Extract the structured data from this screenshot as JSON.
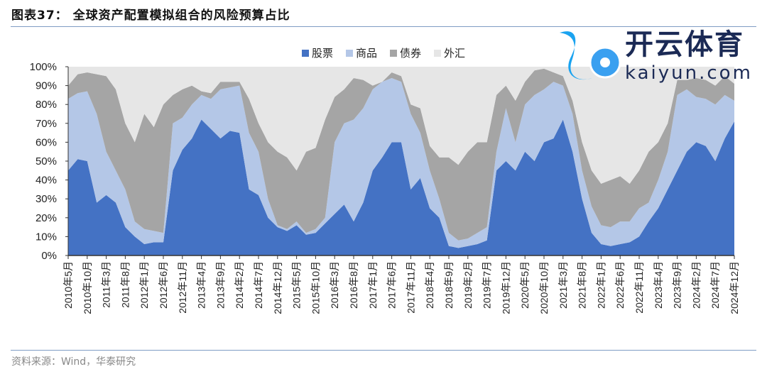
{
  "title": "图表37：  全球资产配置模拟组合的风险预算占比",
  "source": "资料来源：Wind，华泰研究",
  "watermark": {
    "cn": "开云体育",
    "en": "kaiyun.com"
  },
  "colors": {
    "equities": "#4472C4",
    "commodities": "#B4C7E7",
    "bonds": "#A5A5A5",
    "fx": "#E6E6E6"
  },
  "chart_data": {
    "type": "area",
    "stacked": true,
    "title": "",
    "xlabel": "",
    "ylabel": "",
    "ylim": [
      0,
      100
    ],
    "y_ticks": [
      "0%",
      "10%",
      "20%",
      "30%",
      "40%",
      "50%",
      "60%",
      "70%",
      "80%",
      "90%",
      "100%"
    ],
    "legend_position": "top-center",
    "x_start": "2010-05",
    "x_end": "2024-12",
    "x_step_months": 2.5,
    "x_tick_labels": [
      "2010年5月",
      "2010年10月",
      "2011年3月",
      "2011年8月",
      "2012年1月",
      "2012年6月",
      "2012年11月",
      "2013年4月",
      "2013年9月",
      "2014年2月",
      "2014年7月",
      "2014年12月",
      "2015年5月",
      "2015年10月",
      "2016年3月",
      "2016年8月",
      "2017年1月",
      "2017年6月",
      "2017年11月",
      "2018年4月",
      "2018年9月",
      "2019年2月",
      "2019年7月",
      "2019年12月",
      "2020年5月",
      "2020年10月",
      "2021年3月",
      "2021年8月",
      "2022年1月",
      "2022年6月",
      "2022年11月",
      "2023年4月",
      "2023年9月",
      "2024年2月",
      "2024年7月",
      "2024年12月"
    ],
    "series": [
      {
        "key": "equities",
        "name": "股票",
        "values": [
          45,
          51,
          50,
          28,
          32,
          28,
          15,
          10,
          6,
          7,
          7,
          45,
          56,
          62,
          72,
          67,
          62,
          66,
          65,
          35,
          32,
          20,
          15,
          13,
          16,
          11,
          12,
          17,
          22,
          27,
          18,
          28,
          45,
          52,
          60,
          60,
          35,
          41,
          25,
          20,
          5,
          4,
          5,
          6,
          8,
          45,
          50,
          45,
          55,
          50,
          60,
          62,
          72,
          55,
          30,
          12,
          6,
          5,
          6,
          7,
          10,
          18,
          25,
          35,
          45,
          55,
          60,
          58,
          50,
          62,
          71
        ]
      },
      {
        "key": "commodities",
        "name": "商品",
        "values": [
          38,
          35,
          37,
          47,
          23,
          17,
          20,
          8,
          8,
          6,
          5,
          25,
          17,
          18,
          13,
          16,
          26,
          23,
          25,
          30,
          23,
          10,
          1,
          1,
          2,
          1,
          2,
          3,
          38,
          43,
          54,
          50,
          43,
          40,
          34,
          32,
          40,
          24,
          20,
          10,
          7,
          4,
          4,
          6,
          7,
          10,
          28,
          15,
          25,
          35,
          28,
          30,
          18,
          20,
          15,
          14,
          10,
          10,
          12,
          11,
          15,
          10,
          15,
          20,
          40,
          33,
          24,
          25,
          30,
          23,
          11
        ]
      },
      {
        "key": "bonds",
        "name": "债券",
        "values": [
          7,
          10,
          10,
          21,
          40,
          43,
          35,
          42,
          61,
          55,
          68,
          15,
          15,
          10,
          2,
          3,
          4,
          3,
          2,
          18,
          15,
          30,
          39,
          38,
          27,
          43,
          43,
          52,
          24,
          18,
          22,
          15,
          2,
          0,
          3,
          3,
          5,
          13,
          13,
          22,
          40,
          40,
          46,
          48,
          45,
          30,
          12,
          22,
          12,
          13,
          11,
          5,
          5,
          7,
          15,
          19,
          22,
          25,
          24,
          20,
          20,
          27,
          20,
          15,
          8,
          5,
          10,
          10,
          10,
          10,
          9
        ]
      },
      {
        "key": "fx",
        "name": "外汇",
        "values": [
          10,
          4,
          3,
          4,
          5,
          12,
          30,
          40,
          25,
          32,
          20,
          15,
          12,
          10,
          13,
          14,
          8,
          8,
          8,
          17,
          30,
          40,
          45,
          48,
          55,
          45,
          43,
          28,
          16,
          12,
          6,
          7,
          10,
          8,
          3,
          5,
          20,
          22,
          42,
          48,
          48,
          52,
          45,
          40,
          40,
          15,
          10,
          18,
          8,
          2,
          1,
          3,
          5,
          18,
          40,
          55,
          62,
          60,
          58,
          62,
          55,
          45,
          40,
          30,
          7,
          7,
          6,
          7,
          10,
          5,
          9
        ]
      }
    ]
  }
}
